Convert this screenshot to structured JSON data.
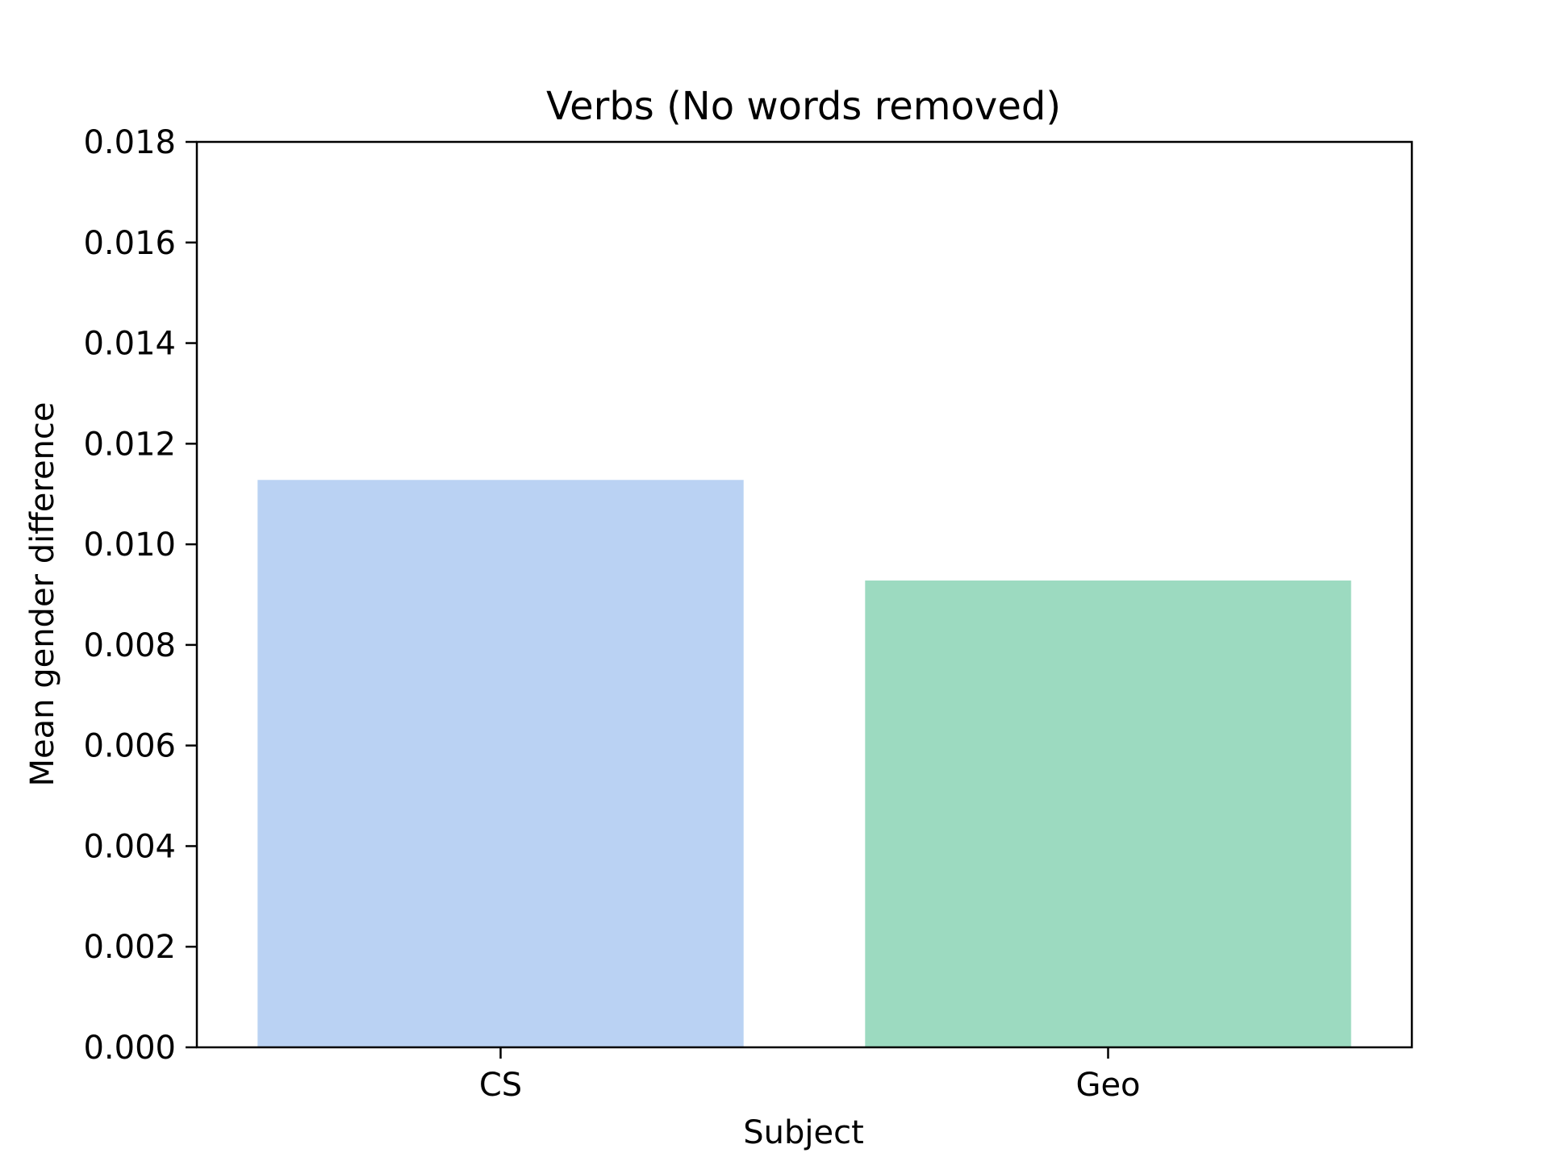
{
  "chart_data": {
    "type": "bar",
    "title": "Verbs (No words removed)",
    "xlabel": "Subject",
    "ylabel": "Mean gender difference",
    "categories": [
      "CS",
      "Geo"
    ],
    "values": [
      0.01128,
      0.00928
    ],
    "colors": [
      "#bad2f3",
      "#9cdac0"
    ],
    "ylim": [
      0,
      0.018
    ],
    "yticks": [
      "0.000",
      "0.002",
      "0.004",
      "0.006",
      "0.008",
      "0.010",
      "0.012",
      "0.014",
      "0.016",
      "0.018"
    ],
    "grid": false,
    "legend": "none"
  }
}
